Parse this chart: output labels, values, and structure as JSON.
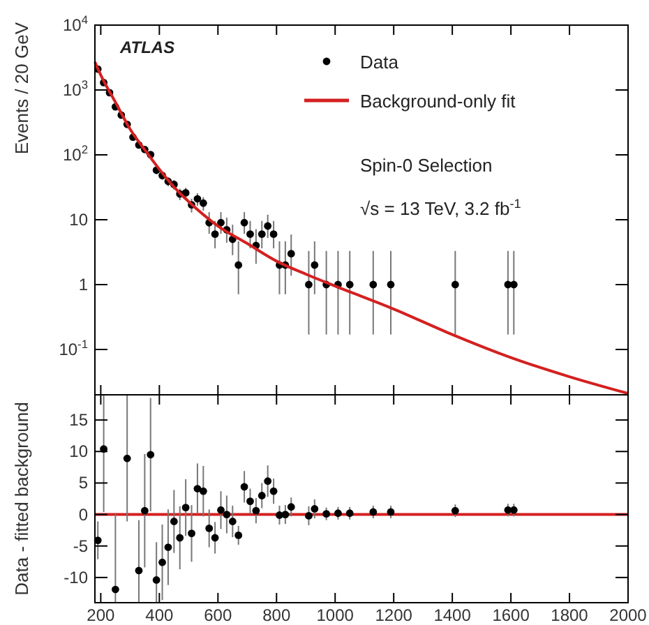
{
  "chart_data": [
    {
      "type": "scatter",
      "ylabel": "Events / 20 GeV",
      "log": "y",
      "xlim": [
        180,
        2000
      ],
      "ylim": [
        0.02,
        10000
      ],
      "xticks": [
        200,
        400,
        600,
        800,
        1000,
        1200,
        1400,
        1600,
        1800,
        2000
      ],
      "yticks": [
        {
          "value": 0.1,
          "label": "10$^{-1}$"
        },
        1,
        10,
        {
          "value": 100,
          "label": "10$^{2}$"
        },
        {
          "value": 1000,
          "label": "10$^{3}$"
        },
        {
          "value": 10000,
          "label": "10$^{4}$"
        }
      ],
      "tick_labels": "y",
      "legend": "top right",
      "grid": false,
      "annotations": [
        "ATLAS",
        "Spin-0 Selection",
        "√s = 13 TeV, 3.2 fb$^{-1}$"
      ],
      "series": [
        {
          "name": "Data",
          "type": "scatter",
          "marker": "circle",
          "color": "#000000",
          "x": [
            190,
            210,
            230,
            250,
            270,
            290,
            310,
            330,
            350,
            370,
            390,
            410,
            430,
            450,
            470,
            490,
            510,
            530,
            550,
            570,
            590,
            610,
            630,
            650,
            670,
            690,
            710,
            730,
            750,
            770,
            790,
            810,
            830,
            850,
            910,
            930,
            970,
            1010,
            1050,
            1130,
            1190,
            1410,
            1590,
            1610
          ],
          "values": [
            2100,
            1300,
            910,
            550,
            410,
            295,
            187,
            142,
            121,
            101,
            58,
            48,
            39,
            35,
            25,
            26,
            17,
            21,
            18,
            9,
            6,
            9,
            7,
            5,
            2,
            9,
            6,
            4,
            6,
            8,
            6,
            2,
            2,
            3,
            1,
            2,
            1,
            1,
            1,
            1,
            1,
            1,
            1,
            1
          ],
          "errors": [
            46,
            36,
            30,
            23,
            20,
            17,
            14,
            12,
            11,
            10,
            7.6,
            6.9,
            6.2,
            5.9,
            5,
            5.1,
            4.1,
            4.6,
            4.2,
            [
              6.06,
              13.11
            ],
            [
              3.62,
              9.58
            ],
            [
              6.06,
              13.11
            ],
            [
              4.42,
              10.77
            ],
            [
              2.84,
              8.38
            ],
            [
              0.71,
              4.64
            ],
            [
              6.06,
              13.11
            ],
            [
              3.62,
              9.58
            ],
            [
              2.09,
              7.16
            ],
            [
              3.62,
              9.58
            ],
            [
              5.23,
              11.94
            ],
            [
              3.62,
              9.58
            ],
            [
              0.71,
              4.64
            ],
            [
              0.71,
              4.64
            ],
            [
              1.37,
              5.92
            ],
            [
              0.17,
              3.3
            ],
            [
              0.71,
              4.64
            ],
            [
              0.17,
              3.3
            ],
            [
              0.17,
              3.3
            ],
            [
              0.17,
              3.3
            ],
            [
              0.17,
              3.3
            ],
            [
              0.17,
              3.3
            ],
            [
              0.17,
              3.3
            ],
            [
              0.17,
              3.3
            ],
            [
              0.17,
              3.3
            ]
          ]
        },
        {
          "name": "Background-only fit",
          "type": "line",
          "color": "#d42020",
          "x": [
            180,
            200,
            250,
            300,
            350,
            400,
            450,
            500,
            600,
            700,
            800,
            900,
            1000,
            1200,
            1400,
            1600,
            1800,
            2000
          ],
          "values": [
            2700,
            1700,
            650,
            250,
            120,
            60,
            32,
            19,
            8,
            4.3,
            2.3,
            1.45,
            0.95,
            0.42,
            0.17,
            0.075,
            0.038,
            0.021
          ]
        }
      ]
    },
    {
      "type": "scatter",
      "ylabel": "Data - fitted background",
      "xlim": [
        180,
        2000
      ],
      "ylim": [
        -14,
        19
      ],
      "xticks": [
        200,
        400,
        600,
        800,
        1000,
        1200,
        1400,
        1600,
        1800,
        2000
      ],
      "yticks": [
        -10,
        -5,
        0,
        5,
        10,
        15
      ],
      "grid": false,
      "ref_lines": [
        {
          "axis": "y",
          "value": 0,
          "color": "#d42020"
        }
      ],
      "series": [
        {
          "type": "scatter",
          "marker": "circle",
          "color": "#000000",
          "x": [
            190,
            210,
            250,
            290,
            330,
            350,
            370,
            390,
            410,
            430,
            450,
            470,
            490,
            510,
            530,
            550,
            570,
            590,
            610,
            630,
            650,
            670,
            690,
            710,
            730,
            750,
            770,
            790,
            810,
            830,
            850,
            910,
            930,
            970,
            1010,
            1050,
            1130,
            1190,
            1410,
            1590,
            1610
          ],
          "values": [
            -4.1,
            10.4,
            -11.9,
            8.9,
            -8.9,
            0.6,
            9.5,
            -10.4,
            -7.6,
            -5.2,
            -1.1,
            -3.7,
            1.1,
            -3.0,
            4.1,
            3.7,
            -2.2,
            -3.7,
            0.7,
            0,
            -1.1,
            -3.3,
            4.4,
            2.1,
            0.6,
            3.0,
            5.3,
            3.7,
            -0.1,
            0,
            1.2,
            -0.2,
            0.9,
            0.1,
            0.2,
            0.2,
            0.4,
            0.4,
            0.6,
            0.7,
            0.7
          ],
          "errors": [
            3,
            [
              0.4,
              19
            ],
            [
              -14,
              0.1
            ],
            10,
            [
              -13.9,
              -0.9
            ],
            9,
            9,
            [
              -14,
              -4.4
            ],
            6,
            6,
            5,
            5,
            4.5,
            4.5,
            4,
            4,
            3,
            2.5,
            3,
            3,
            2.5,
            1.5,
            2.5,
            2,
            2,
            2,
            2.5,
            2,
            1.5,
            1.5,
            1.5,
            1.5,
            1.5,
            1,
            1,
            1,
            1,
            1,
            1,
            1,
            1
          ]
        }
      ]
    }
  ]
}
